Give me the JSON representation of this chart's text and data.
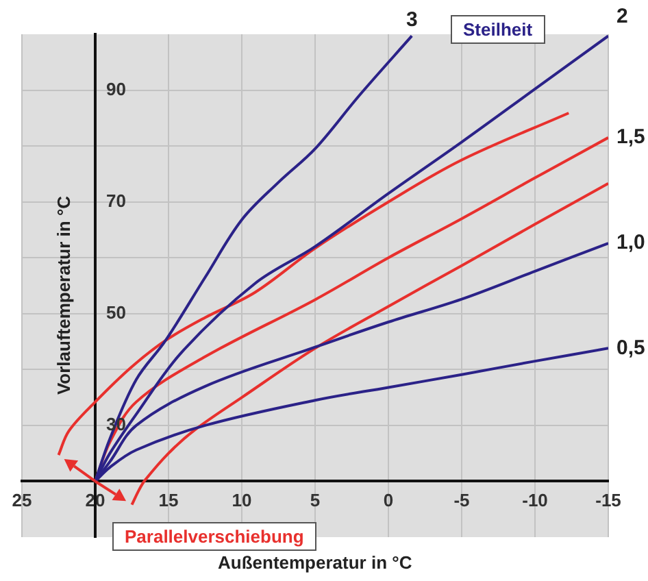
{
  "chart_data": {
    "type": "line",
    "xlabel": "Außentemperatur in °C",
    "ylabel": "Vorlauftemperatur in °C",
    "annotations": [
      "Steilheit",
      "Parallelverschiebung"
    ],
    "xlim": [
      25,
      -15
    ],
    "ylim": [
      10,
      100
    ],
    "xticks": [
      25,
      20,
      15,
      10,
      5,
      0,
      -5,
      -10,
      -15
    ],
    "yticks": [
      {
        "value": 20,
        "label": null
      },
      30,
      {
        "value": 40,
        "label": null
      },
      50,
      {
        "value": 60,
        "label": null
      },
      70,
      {
        "value": 80,
        "label": null
      },
      90
    ],
    "grid": true,
    "legend": false,
    "marker": "none",
    "line_style": "solid",
    "series": [
      {
        "name": "3",
        "color": "#2b2288",
        "x": [
          20,
          19,
          17.2,
          15.2,
          12.5,
          10,
          7.5,
          5,
          2,
          -1.6
        ],
        "values": [
          20,
          27.6,
          38.2,
          45.2,
          56.5,
          66.8,
          73.5,
          79.5,
          89,
          99.7
        ]
      },
      {
        "name": "2",
        "color": "#2b2288",
        "x": [
          20,
          19,
          17.2,
          14.1,
          9.1,
          5,
          0,
          -5,
          -10,
          -15
        ],
        "values": [
          20,
          25,
          32,
          43.1,
          55.4,
          62,
          71.5,
          80.7,
          90.2,
          99.7
        ]
      },
      {
        "name": "1,5",
        "color": "#e8302d",
        "x": [
          20,
          19,
          17.2,
          12.5,
          5,
          0,
          -5,
          -10,
          -15
        ],
        "values": [
          20,
          27,
          34.2,
          42.3,
          52.5,
          60,
          67,
          74.3,
          81.5
        ]
      },
      {
        "name": "1,0",
        "color": "#2b2288",
        "x": [
          20,
          19,
          17.2,
          12.5,
          5,
          0,
          -5,
          -10,
          -15
        ],
        "values": [
          20,
          23.5,
          30,
          37,
          44,
          48.5,
          52.6,
          57.6,
          62.6
        ]
      },
      {
        "name": "0,5",
        "color": "#2b2288",
        "x": [
          20,
          19,
          17.2,
          12.5,
          5,
          0,
          -5,
          -10,
          -15
        ],
        "values": [
          20,
          22.5,
          25.6,
          30,
          34.5,
          36.8,
          39.1,
          41.5,
          43.8
        ]
      },
      {
        "color": "#e8302d",
        "x": [
          22.5,
          21.8,
          20,
          17.5,
          15.2,
          12.5,
          9.1,
          5,
          0,
          -5,
          -12.3
        ],
        "values": [
          24.7,
          29,
          34.2,
          40.5,
          45.2,
          49.3,
          53.8,
          61.7,
          70,
          77.5,
          85.9
        ]
      },
      {
        "color": "#e8302d",
        "x": [
          17.5,
          17,
          16.6,
          15,
          13.2,
          10,
          5,
          0,
          -5,
          -10,
          -15
        ],
        "values": [
          15.8,
          18.5,
          20.2,
          25,
          29.2,
          35,
          43.8,
          51.3,
          58.6,
          66,
          73.3
        ]
      }
    ]
  }
}
